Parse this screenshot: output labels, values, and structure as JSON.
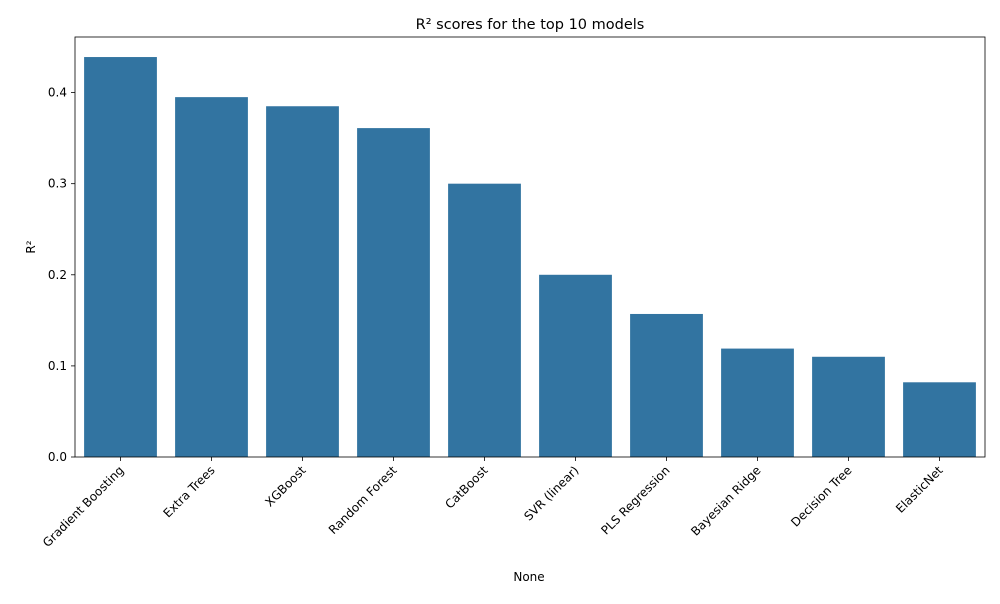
{
  "chart_data": {
    "type": "bar",
    "title": "R² scores for the top 10 models",
    "xlabel": "None",
    "ylabel": "R²",
    "categories": [
      "Gradient Boosting",
      "Extra Trees",
      "XGBoost",
      "Random Forest",
      "CatBoost",
      "SVR (linear)",
      "PLS Regression",
      "Bayesian Ridge",
      "Decision Tree",
      "ElasticNet"
    ],
    "values": [
      0.439,
      0.395,
      0.385,
      0.361,
      0.3,
      0.2,
      0.157,
      0.119,
      0.11,
      0.082
    ],
    "ylim": [
      0,
      0.461
    ],
    "yticks": [
      0.0,
      0.1,
      0.2,
      0.3,
      0.4
    ],
    "ytick_labels": [
      "0.0",
      "0.1",
      "0.2",
      "0.3",
      "0.4"
    ],
    "bar_color": "#3274a1",
    "grid": false,
    "legend": "none"
  }
}
